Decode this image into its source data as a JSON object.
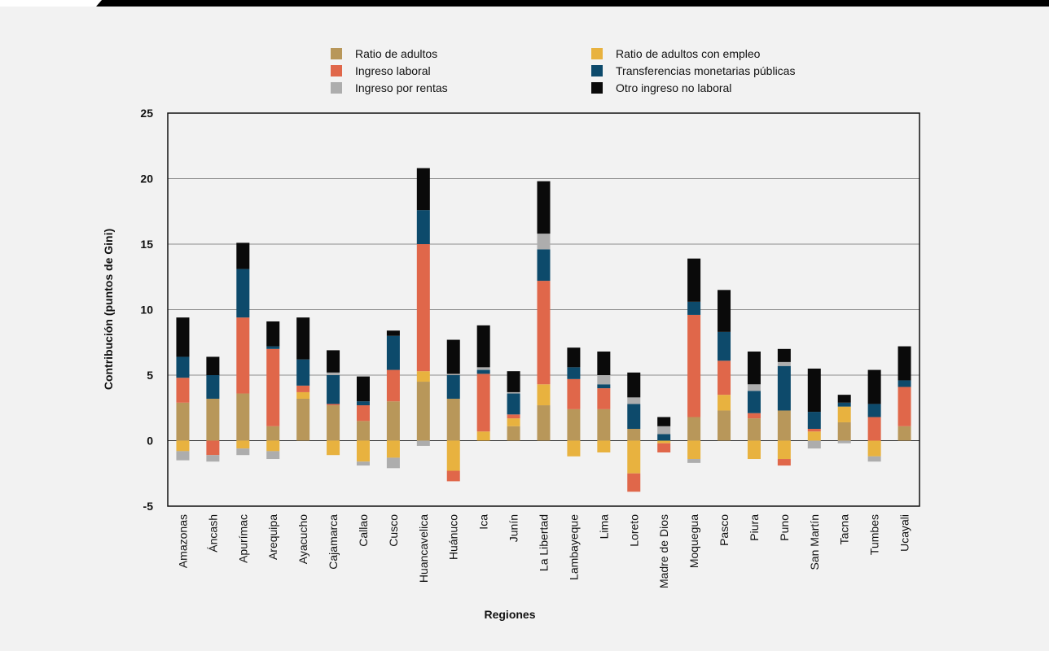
{
  "chart_data": {
    "type": "bar",
    "stacked": true,
    "xlabel": "Regiones",
    "ylabel": "Contribución (puntos de Gini)",
    "ylim": [
      -5,
      25
    ],
    "yticks": [
      25,
      20,
      15,
      10,
      5,
      0,
      -5
    ],
    "grid": true,
    "legend_position": "top",
    "categories": [
      "Amazonas",
      "Áncash",
      "Apurímac",
      "Arequipa",
      "Ayacucho",
      "Cajamarca",
      "Callao",
      "Cusco",
      "Huancavelica",
      "Huánuco",
      "Ica",
      "Junín",
      "La Libertad",
      "Lambayeque",
      "Lima",
      "Loreto",
      "Madre de Dios",
      "Moquegua",
      "Pasco",
      "Piura",
      "Puno",
      "San Martín",
      "Tacna",
      "Tumbes",
      "Ucayali"
    ],
    "series": [
      {
        "name": "Ratio de adultos",
        "color": "#b8975a",
        "values": [
          2.9,
          3.2,
          3.6,
          1.1,
          3.2,
          2.7,
          1.5,
          3.0,
          4.5,
          3.2,
          0.0,
          1.1,
          2.7,
          2.4,
          2.4,
          0.9,
          0.0,
          1.8,
          2.3,
          1.7,
          2.3,
          0.0,
          1.4,
          0.0,
          1.1
        ]
      },
      {
        "name": "Ratio de adultos con empleo",
        "color": "#e8b23f",
        "values": [
          -0.8,
          0.0,
          -0.6,
          -0.8,
          0.5,
          -1.1,
          -1.6,
          -1.3,
          0.8,
          -2.3,
          0.7,
          0.6,
          1.6,
          -1.2,
          -0.9,
          -2.5,
          -0.2,
          -1.4,
          1.2,
          -1.4,
          -1.4,
          0.7,
          1.2,
          -1.2,
          0.0
        ]
      },
      {
        "name": "Ingreso laboral",
        "color": "#e0674a",
        "values": [
          1.9,
          -1.1,
          5.8,
          5.9,
          0.5,
          0.1,
          1.2,
          2.4,
          9.7,
          -0.8,
          4.4,
          0.3,
          7.9,
          2.3,
          1.6,
          -1.4,
          -0.7,
          7.8,
          2.6,
          0.4,
          -0.5,
          0.2,
          0.0,
          1.8,
          3.0
        ]
      },
      {
        "name": "Transferencias monetarias públicas",
        "color": "#0d4a6b",
        "values": [
          1.6,
          1.8,
          3.7,
          0.2,
          2.0,
          2.2,
          0.3,
          2.6,
          2.6,
          1.8,
          0.3,
          1.6,
          2.4,
          0.9,
          0.3,
          1.9,
          0.5,
          1.0,
          2.2,
          1.7,
          3.4,
          1.3,
          0.3,
          1.0,
          0.5
        ]
      },
      {
        "name": "Ingreso por rentas",
        "color": "#adadad",
        "values": [
          -0.7,
          -0.5,
          -0.5,
          -0.6,
          0.0,
          0.2,
          -0.3,
          -0.8,
          -0.4,
          0.1,
          0.2,
          0.1,
          1.2,
          0.0,
          0.7,
          0.5,
          0.6,
          -0.3,
          0.0,
          0.5,
          0.3,
          -0.6,
          -0.2,
          -0.4,
          0.0
        ]
      },
      {
        "name": "Otro ingreso no laboral",
        "color": "#0a0a0a",
        "values": [
          3.0,
          1.4,
          2.0,
          1.9,
          3.2,
          1.7,
          1.9,
          0.4,
          3.2,
          2.6,
          3.2,
          1.6,
          4.0,
          1.5,
          1.8,
          1.9,
          0.7,
          3.3,
          3.2,
          2.5,
          1.0,
          3.3,
          0.6,
          2.6,
          2.6
        ]
      }
    ]
  },
  "colors": {
    "background": "#f2f2f2",
    "top_bar": "#000000",
    "grid": "#8c8c8c"
  }
}
